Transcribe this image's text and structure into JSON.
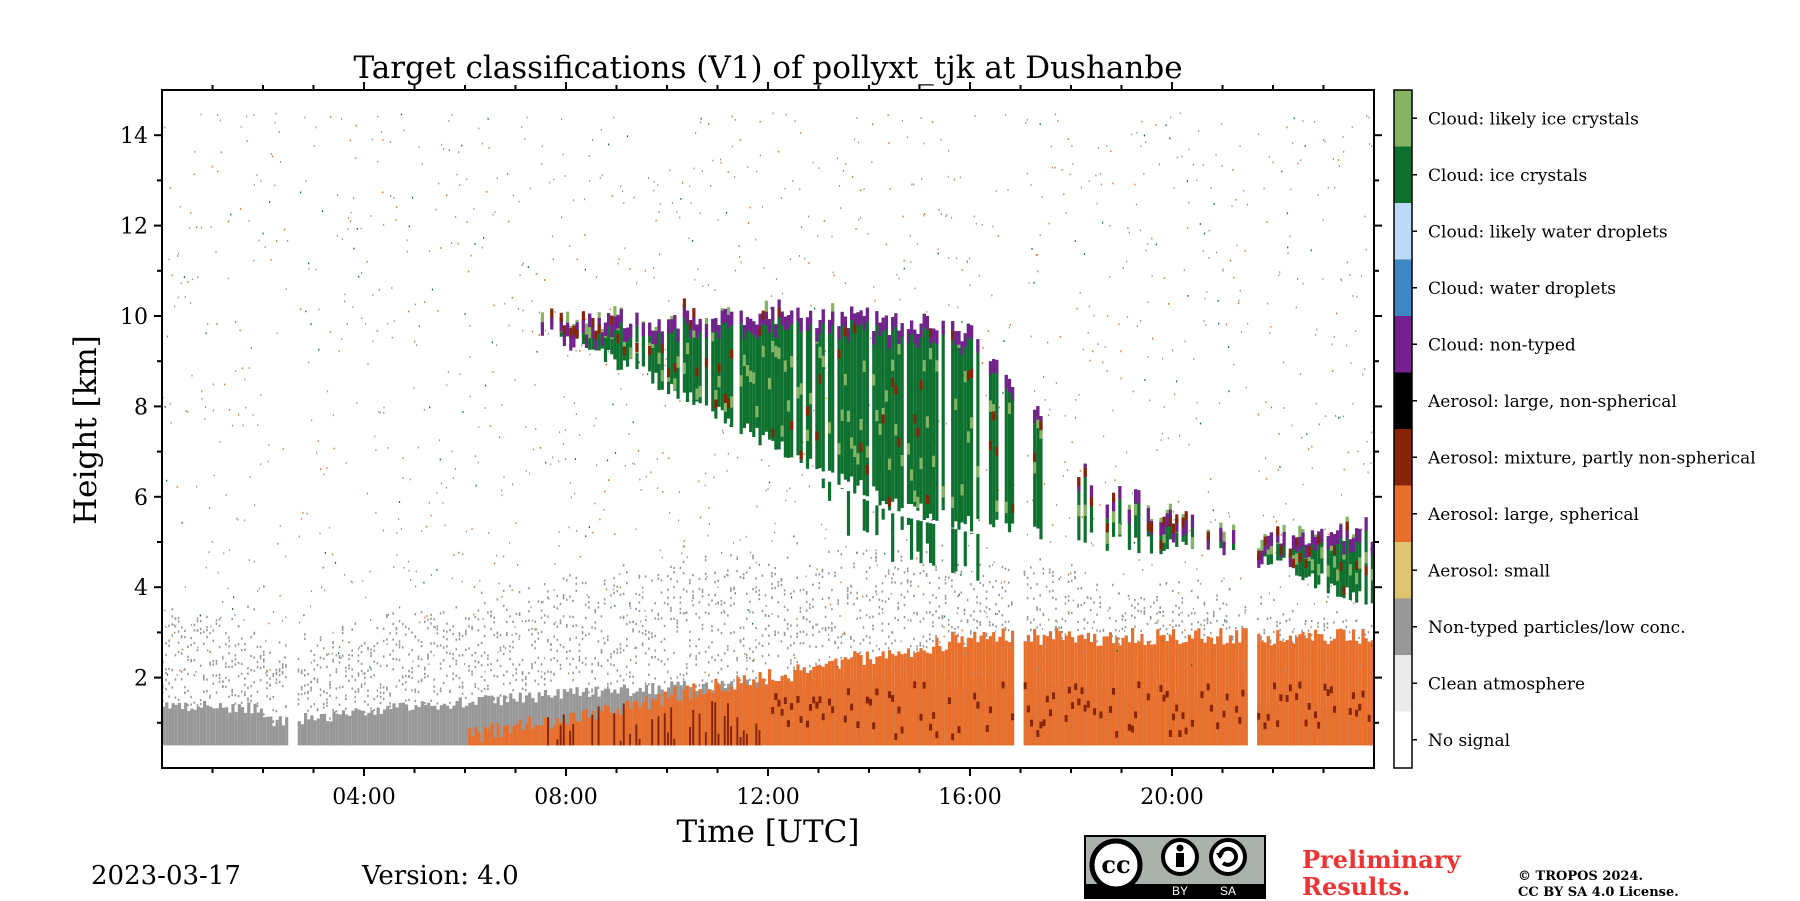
{
  "chart_data": {
    "type": "heatmap",
    "title": "Target classifications (V1) of pollyxt_tjk at Dushanbe",
    "xlabel": "Time [UTC]",
    "ylabel": "Height [km]",
    "x_ticks": [
      "04:00",
      "08:00",
      "12:00",
      "16:00",
      "20:00"
    ],
    "x_tick_hours": [
      4,
      8,
      12,
      16,
      20
    ],
    "xlim_hours": [
      0,
      24
    ],
    "y_ticks": [
      2,
      4,
      6,
      8,
      10,
      12,
      14
    ],
    "ylim_km": [
      0,
      15
    ],
    "data_gaps_hours": [
      [
        2.5,
        2.65
      ],
      [
        16.85,
        17.0
      ],
      [
        21.5,
        21.65
      ]
    ],
    "colorbar": [
      {
        "label": "No signal",
        "color": "#ffffff"
      },
      {
        "label": "Clean atmosphere",
        "color": "#ebebeb"
      },
      {
        "label": "Non-typed particles/low conc.",
        "color": "#989898"
      },
      {
        "label": "Aerosol: small",
        "color": "#dec56f"
      },
      {
        "label": "Aerosol: large, spherical",
        "color": "#e8702c"
      },
      {
        "label": "Aerosol: mixture, partly non-spherical",
        "color": "#872406"
      },
      {
        "label": "Aerosol: large, non-spherical",
        "color": "#000000"
      },
      {
        "label": "Cloud: non-typed",
        "color": "#74208e"
      },
      {
        "label": "Cloud: water droplets",
        "color": "#3d88c4"
      },
      {
        "label": "Cloud: likely water droplets",
        "color": "#bbdaf5"
      },
      {
        "label": "Cloud: ice crystals",
        "color": "#0e702f"
      },
      {
        "label": "Cloud: likely ice crystals",
        "color": "#83b363"
      }
    ],
    "features": {
      "cloud_base_km": [
        {
          "hour": 7.0,
          "km": 9.8
        },
        {
          "hour": 9.0,
          "km": 8.8
        },
        {
          "hour": 12.0,
          "km": 7.0
        },
        {
          "hour": 14.5,
          "km": 5.6
        },
        {
          "hour": 16.0,
          "km": 5.2
        },
        {
          "hour": 18.5,
          "km": 4.8
        },
        {
          "hour": 21.5,
          "km": 4.6
        },
        {
          "hour": 24.0,
          "km": 3.4
        }
      ],
      "cloud_top_km": [
        {
          "hour": 7.0,
          "km": 9.9
        },
        {
          "hour": 9.0,
          "km": 10.2
        },
        {
          "hour": 12.0,
          "km": 10.4
        },
        {
          "hour": 15.0,
          "km": 10.1
        },
        {
          "hour": 16.0,
          "km": 10.0
        },
        {
          "hour": 18.5,
          "km": 6.5
        },
        {
          "hour": 21.5,
          "km": 5.2
        },
        {
          "hour": 24.0,
          "km": 5.6
        }
      ]
    }
  },
  "footer": {
    "date": "2023-03-17",
    "version": "Version: 4.0",
    "preliminary": "Preliminary Results.",
    "copyright_line1": "© TROPOS 2024.",
    "copyright_line2": "CC BY SA 4.0 License.",
    "cc_badge": {
      "cc": "cc",
      "by": "BY",
      "sa": "SA"
    }
  }
}
